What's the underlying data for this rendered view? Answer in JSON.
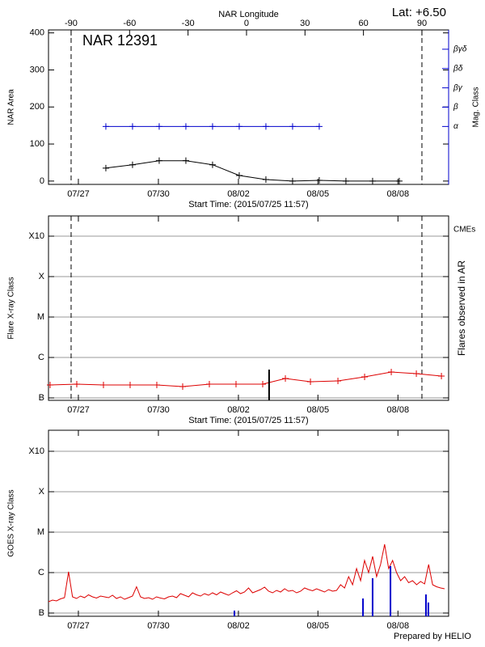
{
  "lat": "Lat:  +6.50",
  "prepared_by": "Prepared by HELIO",
  "chart_data": [
    {
      "type": "line",
      "title": "NAR 12391",
      "x_top_label": "NAR Longitude",
      "x_label": "Start Time: (2015/07/25 11:57)",
      "y_label": "NAR Area",
      "y2_label": "Mag. Class",
      "xlim": [
        0,
        15
      ],
      "xticks": [
        {
          "value": 1.12,
          "label": "07/27"
        },
        {
          "value": 4.12,
          "label": "07/30"
        },
        {
          "value": 7.12,
          "label": "08/02"
        },
        {
          "value": 10.1,
          "label": "08/05"
        },
        {
          "value": 13.1,
          "label": "08/08"
        }
      ],
      "x2lim": [
        -101.6,
        103.7
      ],
      "x2ticks": [
        -90,
        -60,
        -30,
        0,
        30,
        60,
        90
      ],
      "limb_lines": true,
      "ylim": [
        -9,
        408
      ],
      "yticks": [
        0,
        100,
        200,
        300,
        400
      ],
      "y2lim": [
        -3,
        5
      ],
      "y2ticks": [
        {
          "value": 0,
          "label": "α"
        },
        {
          "value": 1,
          "label": "β"
        },
        {
          "value": 2,
          "label": "βγ"
        },
        {
          "value": 3,
          "label": "βδ"
        },
        {
          "value": 4,
          "label": "βγδ"
        }
      ],
      "y2color": "#0000cc",
      "grid": false,
      "series": [
        {
          "color": "#000000",
          "marker": "plus",
          "x": [
            2.15,
            3.15,
            4.15,
            5.15,
            6.15,
            7.15,
            8.15,
            9.15,
            10.15,
            11.15,
            12.15,
            13.15
          ],
          "values": [
            35,
            44,
            55,
            55,
            44,
            15,
            4,
            0,
            2,
            0,
            0,
            0
          ]
        },
        {
          "color": "#0000cc",
          "marker": "plus",
          "axis": "y2",
          "x": [
            2.15,
            3.15,
            4.15,
            5.15,
            6.15,
            7.15,
            8.15,
            9.15,
            10.15
          ],
          "values": [
            0,
            0,
            0,
            0,
            0,
            0,
            0,
            0,
            0
          ]
        }
      ]
    },
    {
      "type": "line",
      "x_label": "Start Time: (2015/07/25 11:57)",
      "y_label": "Flare X-ray Class",
      "y2_label": "Flares observed in AR",
      "annotation": "CMEs",
      "annotation_color": "#dd0000",
      "xlim": [
        0,
        15
      ],
      "xticks": [
        {
          "value": 1.12,
          "label": "07/27"
        },
        {
          "value": 4.12,
          "label": "07/30"
        },
        {
          "value": 7.12,
          "label": "08/02"
        },
        {
          "value": 10.1,
          "label": "08/05"
        },
        {
          "value": 13.1,
          "label": "08/08"
        }
      ],
      "limb_lines": true,
      "ylim": [
        -7.06,
        -2.5
      ],
      "yticks": [
        {
          "value": -7,
          "label": "B"
        },
        {
          "value": -6,
          "label": "C"
        },
        {
          "value": -5,
          "label": "M"
        },
        {
          "value": -4,
          "label": "X"
        },
        {
          "value": -3,
          "label": "X10"
        }
      ],
      "grid": true,
      "series": [
        {
          "color": "#dd0000",
          "marker": "plus",
          "x": [
            0.06,
            1.06,
            2.06,
            3.06,
            4.06,
            5.03,
            6.03,
            7.03,
            8.03,
            8.88,
            9.82,
            10.85,
            11.85,
            12.85,
            13.79,
            14.73
          ],
          "values": [
            -6.68,
            -6.66,
            -6.68,
            -6.68,
            -6.68,
            -6.72,
            -6.66,
            -6.66,
            -6.66,
            -6.52,
            -6.6,
            -6.58,
            -6.48,
            -6.36,
            -6.4,
            -6.46
          ]
        }
      ],
      "bars": {
        "color": "#000000",
        "x": [
          8.27
        ],
        "values": [
          -6.3
        ]
      }
    },
    {
      "type": "line",
      "y_label": "GOES X-ray Class",
      "xlim": [
        0,
        15
      ],
      "xticks": [
        {
          "value": 1.12,
          "label": "07/27"
        },
        {
          "value": 4.12,
          "label": "07/30"
        },
        {
          "value": 7.12,
          "label": "08/02"
        },
        {
          "value": 10.1,
          "label": "08/05"
        },
        {
          "value": 13.1,
          "label": "08/08"
        }
      ],
      "ylim": [
        -7.08,
        -2.48
      ],
      "yticks": [
        {
          "value": -7,
          "label": "B"
        },
        {
          "value": -6,
          "label": "C"
        },
        {
          "value": -5,
          "label": "M"
        },
        {
          "value": -4,
          "label": "X"
        },
        {
          "value": -3,
          "label": "X10"
        }
      ],
      "grid": true,
      "series": [
        {
          "color": "#dd0000",
          "step": 0.15,
          "values": [
            -6.72,
            -6.68,
            -6.7,
            -6.65,
            -6.62,
            -5.98,
            -6.6,
            -6.64,
            -6.58,
            -6.62,
            -6.55,
            -6.6,
            -6.63,
            -6.58,
            -6.6,
            -6.62,
            -6.56,
            -6.64,
            -6.6,
            -6.66,
            -6.62,
            -6.58,
            -6.35,
            -6.6,
            -6.64,
            -6.62,
            -6.66,
            -6.6,
            -6.63,
            -6.65,
            -6.6,
            -6.58,
            -6.62,
            -6.52,
            -6.56,
            -6.6,
            -6.5,
            -6.55,
            -6.58,
            -6.52,
            -6.56,
            -6.5,
            -6.55,
            -6.48,
            -6.52,
            -6.56,
            -6.5,
            -6.45,
            -6.52,
            -6.48,
            -6.38,
            -6.5,
            -6.46,
            -6.42,
            -6.36,
            -6.46,
            -6.5,
            -6.44,
            -6.48,
            -6.4,
            -6.46,
            -6.44,
            -6.5,
            -6.46,
            -6.38,
            -6.42,
            -6.45,
            -6.4,
            -6.44,
            -6.48,
            -6.42,
            -6.46,
            -6.44,
            -6.3,
            -6.38,
            -6.1,
            -6.3,
            -5.9,
            -6.2,
            -5.7,
            -6.0,
            -5.6,
            -6.1,
            -5.8,
            -5.3,
            -5.9,
            -5.7,
            -6.0,
            -6.2,
            -6.1,
            -6.25,
            -6.2,
            -6.3,
            -6.22,
            -6.28,
            -5.8,
            -6.3,
            -6.35,
            -6.38,
            -6.4
          ]
        }
      ],
      "bars": {
        "color": "#0000cc",
        "x": [
          6.97,
          11.79,
          12.15,
          12.82,
          14.15,
          14.24
        ],
        "values": [
          -6.94,
          -6.64,
          -6.14,
          -5.84,
          -6.54,
          -6.74
        ]
      }
    }
  ]
}
